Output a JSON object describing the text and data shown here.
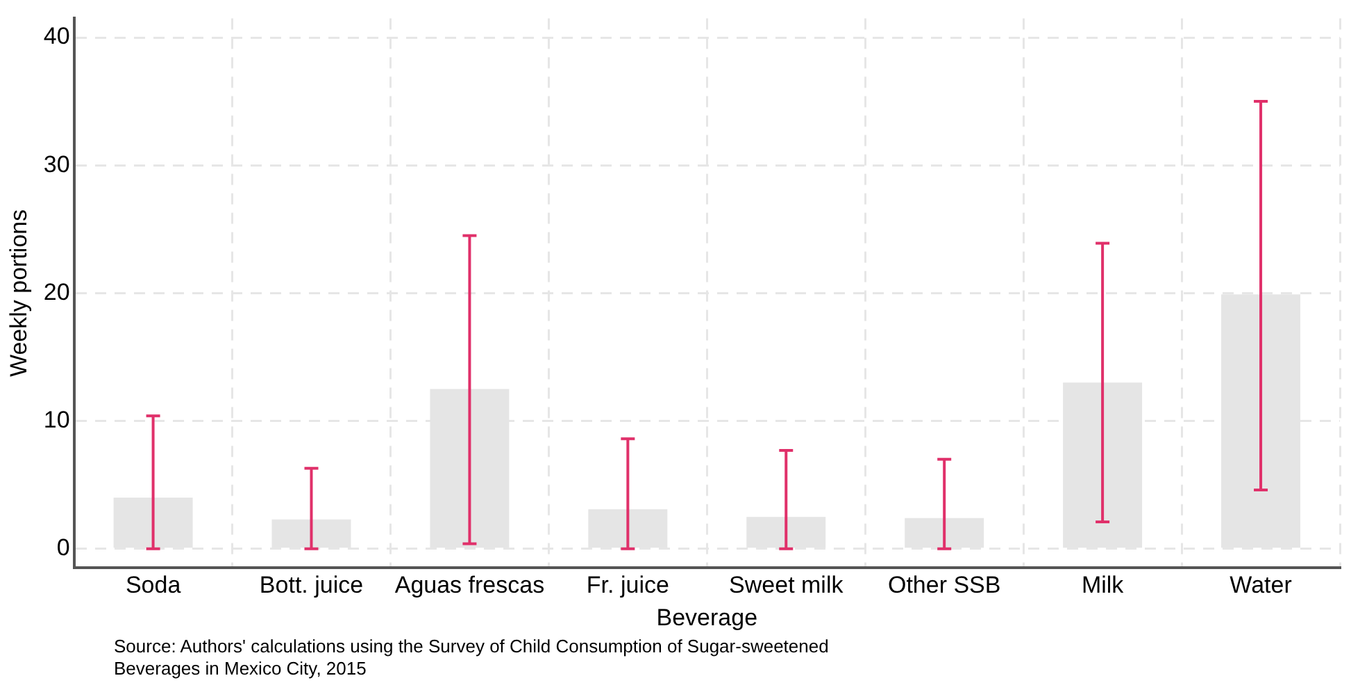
{
  "chart_data": {
    "type": "bar",
    "xlabel": "Beverage",
    "ylabel": "Weekly portions",
    "categories": [
      "Soda",
      "Bott. juice",
      "Aguas frescas",
      "Fr. juice",
      "Sweet milk",
      "Other SSB",
      "Milk",
      "Water"
    ],
    "series": [
      {
        "color": "#e5e5e5",
        "values": [
          4.0,
          2.3,
          12.5,
          3.1,
          2.5,
          2.4,
          13.0,
          19.9
        ],
        "errors": [
          [
            0,
            10.4
          ],
          [
            0,
            6.3
          ],
          [
            0.4,
            24.5
          ],
          [
            0,
            8.6
          ],
          [
            0,
            7.7
          ],
          [
            0,
            7.0
          ],
          [
            2.1,
            23.9
          ],
          [
            4.6,
            35.0
          ]
        ]
      }
    ],
    "ylim": [
      -1.5,
      41.5
    ],
    "yticks": [
      0,
      10,
      20,
      30,
      40
    ],
    "grid": true,
    "legend": false,
    "annotations": [
      "Source: Authors' calculations using the Survey of Child Consumption of Sugar-sweetened Beverages in Mexico City, 2015"
    ]
  }
}
